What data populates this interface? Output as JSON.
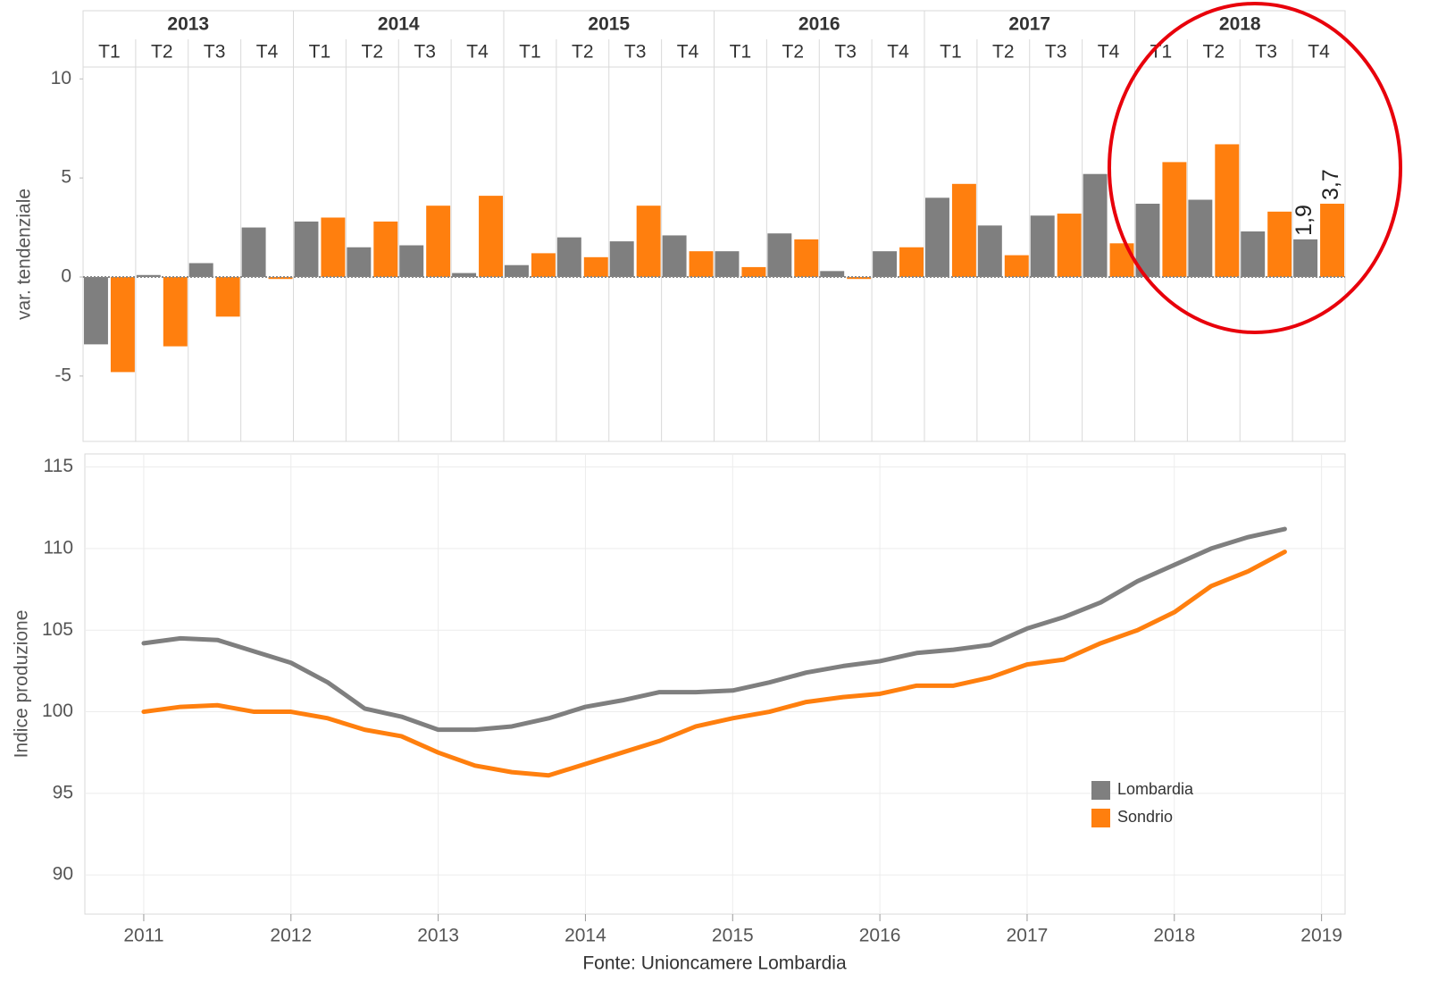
{
  "chart_data": [
    {
      "type": "bar",
      "y_label": "var. tendenziale",
      "groups": [
        {
          "label": "2013",
          "categories": [
            "T1",
            "T2",
            "T3",
            "T4"
          ]
        },
        {
          "label": "2014",
          "categories": [
            "T1",
            "T2",
            "T3",
            "T4"
          ]
        },
        {
          "label": "2015",
          "categories": [
            "T1",
            "T2",
            "T3",
            "T4"
          ]
        },
        {
          "label": "2016",
          "categories": [
            "T1",
            "T2",
            "T3",
            "T4"
          ]
        },
        {
          "label": "2017",
          "categories": [
            "T1",
            "T2",
            "T3",
            "T4"
          ]
        },
        {
          "label": "2018",
          "categories": [
            "T1",
            "T2",
            "T3",
            "T4"
          ]
        }
      ],
      "series": [
        {
          "name": "Lombardia",
          "color": "#7f7f7f",
          "values": [
            -3.4,
            0.1,
            0.7,
            2.5,
            2.8,
            1.5,
            1.6,
            0.2,
            0.6,
            2.0,
            1.8,
            2.1,
            1.3,
            2.2,
            0.3,
            1.3,
            4.0,
            2.6,
            3.1,
            5.2,
            3.7,
            3.9,
            2.3,
            1.9
          ],
          "value_labels": [
            null,
            null,
            null,
            null,
            null,
            null,
            null,
            null,
            null,
            null,
            null,
            null,
            null,
            null,
            null,
            null,
            null,
            null,
            null,
            null,
            null,
            null,
            null,
            "1,9"
          ]
        },
        {
          "name": "Sondrio",
          "color": "#ff7f0e",
          "values": [
            -4.8,
            -3.5,
            -2.0,
            -0.1,
            3.0,
            2.8,
            3.6,
            4.1,
            1.2,
            1.0,
            3.6,
            1.3,
            0.5,
            1.9,
            -0.1,
            1.5,
            4.7,
            1.1,
            3.2,
            1.7,
            5.8,
            6.7,
            3.3,
            3.7
          ],
          "value_labels": [
            null,
            null,
            null,
            null,
            null,
            null,
            null,
            null,
            null,
            null,
            null,
            null,
            null,
            null,
            null,
            null,
            null,
            null,
            null,
            null,
            null,
            null,
            null,
            "3,7"
          ]
        }
      ],
      "ylim": [
        -8.3,
        10.6
      ],
      "yticks": [
        -5,
        0,
        5,
        10
      ]
    },
    {
      "type": "line",
      "y_label": "Indice produzione",
      "x": [
        2011,
        2011.25,
        2011.5,
        2011.75,
        2012,
        2012.25,
        2012.5,
        2012.75,
        2013,
        2013.25,
        2013.5,
        2013.75,
        2014,
        2014.25,
        2014.5,
        2014.75,
        2015,
        2015.25,
        2015.5,
        2015.75,
        2016,
        2016.25,
        2016.5,
        2016.75,
        2017,
        2017.25,
        2017.5,
        2017.75,
        2018,
        2018.25,
        2018.5,
        2018.75
      ],
      "series": [
        {
          "name": "Lombardia",
          "color": "#7f7f7f",
          "values": [
            104.2,
            104.5,
            104.4,
            103.7,
            103.0,
            101.8,
            100.2,
            99.7,
            98.9,
            98.9,
            99.1,
            99.6,
            100.3,
            100.7,
            101.2,
            101.2,
            101.3,
            101.8,
            102.4,
            102.8,
            103.1,
            103.6,
            103.8,
            104.1,
            105.1,
            105.8,
            106.7,
            108.0,
            109.0,
            110.0,
            110.7,
            111.2
          ]
        },
        {
          "name": "Sondrio",
          "color": "#ff7f0e",
          "values": [
            100.0,
            100.3,
            100.4,
            100.0,
            100.0,
            99.6,
            98.9,
            98.5,
            97.5,
            96.7,
            96.3,
            96.1,
            96.8,
            97.5,
            98.2,
            99.1,
            99.6,
            100.0,
            100.6,
            100.9,
            101.1,
            101.6,
            101.6,
            102.1,
            102.9,
            103.2,
            104.2,
            105.0,
            106.1,
            107.7,
            108.6,
            109.8
          ]
        }
      ],
      "xlim": [
        2010.6,
        2019.16
      ],
      "xticks": [
        2011,
        2012,
        2013,
        2014,
        2015,
        2016,
        2017,
        2018,
        2019
      ],
      "ylim": [
        87.6,
        115.8
      ],
      "yticks": [
        90,
        95,
        100,
        105,
        110,
        115
      ],
      "grid": true,
      "legend": "lower right"
    }
  ],
  "source": "Fonte: Unioncamere Lombardia"
}
